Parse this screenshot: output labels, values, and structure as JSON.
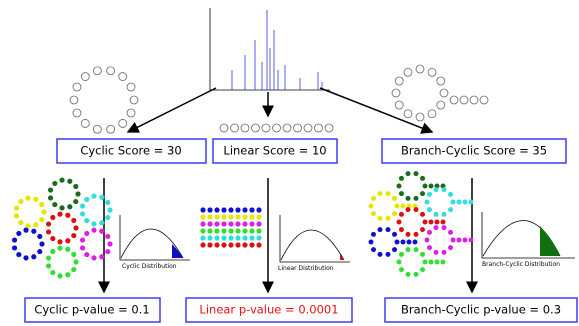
{
  "scores": [
    {
      "label": "Cyclic Score = 30"
    },
    {
      "label": "Linear Score = 10"
    },
    {
      "label": "Branch-Cyclic Score = 35"
    }
  ],
  "distributions": [
    {
      "label": "Cyclic Distribution"
    },
    {
      "label": "Linear Distribution"
    },
    {
      "label": "Branch-Cyclic Distribution"
    }
  ],
  "p_values": [
    {
      "label": "Cyclic p-value = 0.1"
    },
    {
      "label": "Linear p-value = 0.0001"
    },
    {
      "label": "Branch-Cyclic p-value = 0.3"
    }
  ]
}
